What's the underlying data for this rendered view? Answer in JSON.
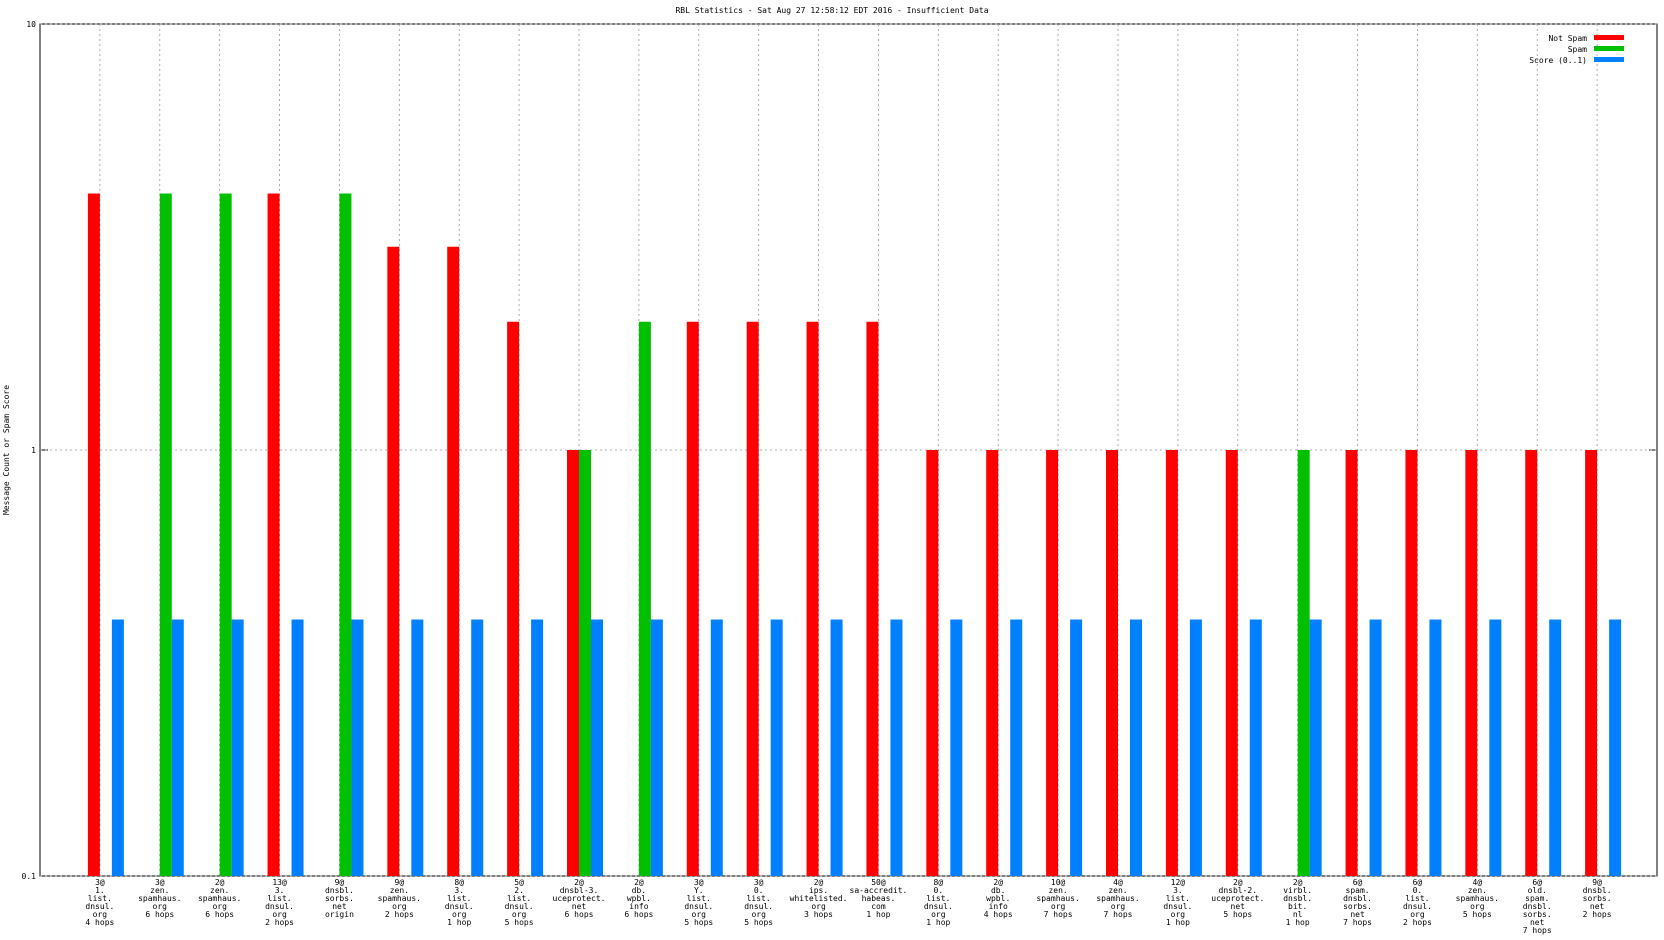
{
  "chart_data": {
    "type": "bar",
    "title": "RBL Statistics - Sat Aug 27 12:58:12 EDT 2016 - Insufficient Data",
    "y_label": "Message Count or Spam Score",
    "log_y": true,
    "grid": true,
    "legend": "top-right",
    "ylim": [
      0.1,
      10
    ],
    "yticks": [
      0.1,
      1,
      10
    ],
    "categories": [
      [
        "3@",
        "1.",
        "list.",
        "dnsul.",
        "org",
        "4 hops"
      ],
      [
        "3@",
        "zen.",
        "spamhaus.",
        "org",
        "6 hops"
      ],
      [
        "2@",
        "zen.",
        "spamhaus.",
        "org",
        "6 hops"
      ],
      [
        "13@",
        "3.",
        "list.",
        "dnsul.",
        "org",
        "2 hops"
      ],
      [
        "9@",
        "dnsbl.",
        "sorbs.",
        "net",
        "origin"
      ],
      [
        "9@",
        "zen.",
        "spamhaus.",
        "org",
        "2 hops"
      ],
      [
        "8@",
        "3.",
        "list.",
        "dnsul.",
        "org",
        "1 hop"
      ],
      [
        "5@",
        "2.",
        "list.",
        "dnsul.",
        "org",
        "5 hops"
      ],
      [
        "2@",
        "dnsbl-3.",
        "uceprotect.",
        "net",
        "6 hops"
      ],
      [
        "2@",
        "db.",
        "wpbl.",
        "info",
        "6 hops"
      ],
      [
        "3@",
        "Y.",
        "list.",
        "dnsul.",
        "org",
        "5 hops"
      ],
      [
        "3@",
        "0.",
        "list.",
        "dnsul.",
        "org",
        "5 hops"
      ],
      [
        "2@",
        "ips.",
        "whitelisted.",
        "org",
        "3 hops"
      ],
      [
        "50@",
        "sa-accredit.",
        "habeas.",
        "com",
        "1 hop"
      ],
      [
        "8@",
        "0.",
        "list.",
        "dnsul.",
        "org",
        "1 hop"
      ],
      [
        "2@",
        "db.",
        "wpbl.",
        "info",
        "4 hops"
      ],
      [
        "10@",
        "zen.",
        "spamhaus.",
        "org",
        "7 hops"
      ],
      [
        "4@",
        "zen.",
        "spamhaus.",
        "org",
        "7 hops"
      ],
      [
        "12@",
        "3.",
        "list.",
        "dnsul.",
        "org",
        "1 hop"
      ],
      [
        "2@",
        "dnsbl-2.",
        "uceprotect.",
        "net",
        "5 hops"
      ],
      [
        "2@",
        "virbl.",
        "dnsbl.",
        "bit.",
        "nl",
        "1 hop"
      ],
      [
        "6@",
        "spam.",
        "dnsbl.",
        "sorbs.",
        "net",
        "7 hops"
      ],
      [
        "6@",
        "0.",
        "list.",
        "dnsul.",
        "org",
        "2 hops"
      ],
      [
        "4@",
        "zen.",
        "spamhaus.",
        "org",
        "5 hops"
      ],
      [
        "6@",
        "old.",
        "spam.",
        "dnsbl.",
        "sorbs.",
        "net",
        "7 hops"
      ],
      [
        "9@",
        "dnsbl.",
        "sorbs.",
        "net",
        "2 hops"
      ]
    ],
    "series": [
      {
        "name": "Not Spam",
        "color": "#ff0000",
        "values": [
          4,
          null,
          null,
          4,
          null,
          3,
          3,
          2,
          1,
          null,
          2,
          2,
          2,
          2,
          1,
          1,
          1,
          1,
          1,
          1,
          null,
          1,
          1,
          1,
          1,
          1
        ]
      },
      {
        "name": "Spam",
        "color": "#00c000",
        "values": [
          null,
          4,
          4,
          null,
          4,
          null,
          null,
          null,
          1,
          2,
          null,
          null,
          null,
          null,
          null,
          null,
          null,
          null,
          null,
          null,
          1,
          null,
          null,
          null,
          null,
          null
        ]
      },
      {
        "name": "Score (0..1)",
        "color": "#0080ff",
        "values": [
          0.4,
          0.4,
          0.4,
          0.4,
          0.4,
          0.4,
          0.4,
          0.4,
          0.4,
          0.4,
          0.4,
          0.4,
          0.4,
          0.4,
          0.4,
          0.4,
          0.4,
          0.4,
          0.4,
          0.4,
          0.4,
          0.4,
          0.4,
          0.4,
          0.4,
          0.4
        ]
      }
    ]
  }
}
